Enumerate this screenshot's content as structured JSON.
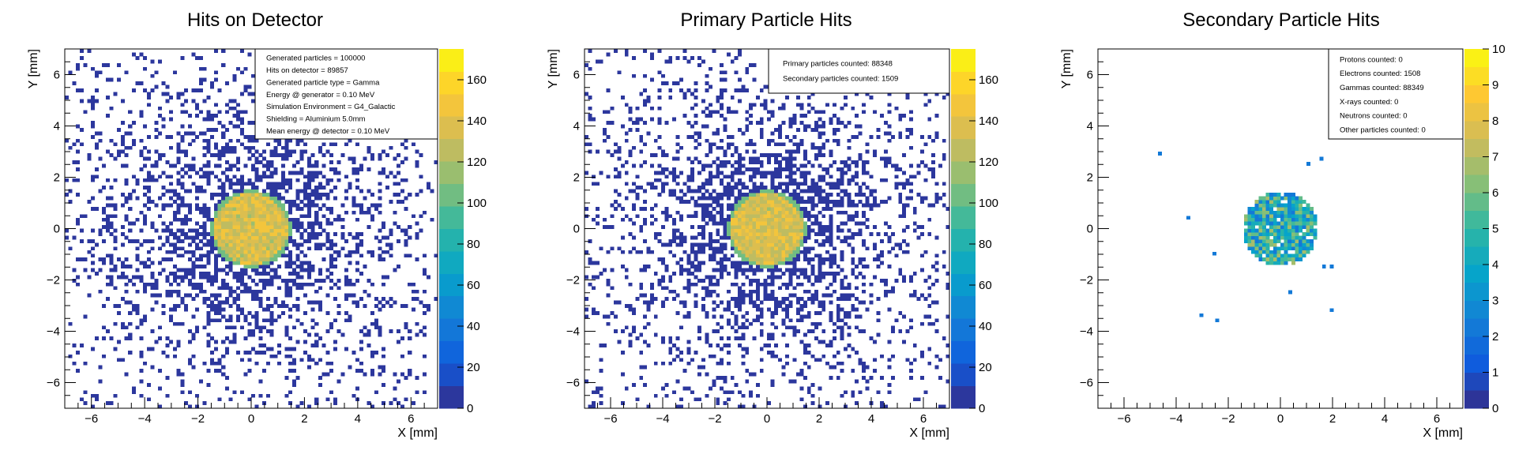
{
  "chart_data": [
    {
      "type": "heatmap",
      "title": "Hits on Detector",
      "xlabel": "X [mm]",
      "ylabel": "Y [mm]",
      "xlim": [
        -7,
        7
      ],
      "ylim": [
        -7,
        7
      ],
      "x_ticks": [
        -6,
        -4,
        -2,
        0,
        2,
        4,
        6
      ],
      "y_ticks": [
        -6,
        -4,
        -2,
        0,
        2,
        4,
        6
      ],
      "z_range": [
        0,
        175
      ],
      "z_ticks": [
        0,
        20,
        40,
        60,
        80,
        100,
        120,
        140,
        160
      ],
      "distribution": {
        "core_radius_mm": 1.5,
        "core_counts": 135,
        "background_fraction": 0.55
      },
      "info_box": [
        "Generated particles = 100000",
        "Hits on detector = 89857",
        "Generated particle type = Gamma",
        "Energy @ generator = 0.10 MeV",
        "Simulation Environment = G4_Galactic",
        "Shielding = Aluminium 5.0mm",
        "Mean energy @ detector = 0.10 MeV"
      ]
    },
    {
      "type": "heatmap",
      "title": "Primary Particle Hits",
      "xlabel": "X [mm]",
      "ylabel": "Y [mm]",
      "xlim": [
        -7,
        7
      ],
      "ylim": [
        -7,
        7
      ],
      "x_ticks": [
        -6,
        -4,
        -2,
        0,
        2,
        4,
        6
      ],
      "y_ticks": [
        -6,
        -4,
        -2,
        0,
        2,
        4,
        6
      ],
      "z_range": [
        0,
        175
      ],
      "z_ticks": [
        0,
        20,
        40,
        60,
        80,
        100,
        120,
        140,
        160
      ],
      "distribution": {
        "core_radius_mm": 1.5,
        "core_counts": 135,
        "background_fraction": 0.55
      },
      "info_box": [
        "Primary particles counted: 88348",
        "Secondary particles counted: 1509"
      ]
    },
    {
      "type": "heatmap",
      "title": "Secondary Particle Hits",
      "xlabel": "X [mm]",
      "ylabel": "Y [mm]",
      "xlim": [
        -7,
        7
      ],
      "ylim": [
        -7,
        7
      ],
      "x_ticks": [
        -6,
        -4,
        -2,
        0,
        2,
        4,
        6
      ],
      "y_ticks": [
        -6,
        -4,
        -2,
        0,
        2,
        4,
        6
      ],
      "z_range": [
        0,
        10
      ],
      "z_ticks": [
        0,
        1,
        2,
        3,
        4,
        5,
        6,
        7,
        8,
        9,
        10
      ],
      "distribution": {
        "core_radius_mm": 1.45,
        "core_counts": 4,
        "background_fraction": 0
      },
      "stray_hits": [
        [
          -4.7,
          3.0
        ],
        [
          1.0,
          2.6
        ],
        [
          1.5,
          2.8
        ],
        [
          -3.6,
          0.5
        ],
        [
          -2.6,
          -0.9
        ],
        [
          -3.1,
          -3.3
        ],
        [
          -2.5,
          -3.5
        ],
        [
          1.6,
          -1.4
        ],
        [
          1.9,
          -1.4
        ],
        [
          0.3,
          -2.4
        ],
        [
          1.9,
          -3.1
        ]
      ],
      "info_box": [
        "Protons counted: 0",
        "Electrons counted: 1508",
        "Gammas counted: 88349",
        "X-rays counted: 0",
        "Neutrons counted: 0",
        "Other particles counted: 0"
      ]
    }
  ]
}
